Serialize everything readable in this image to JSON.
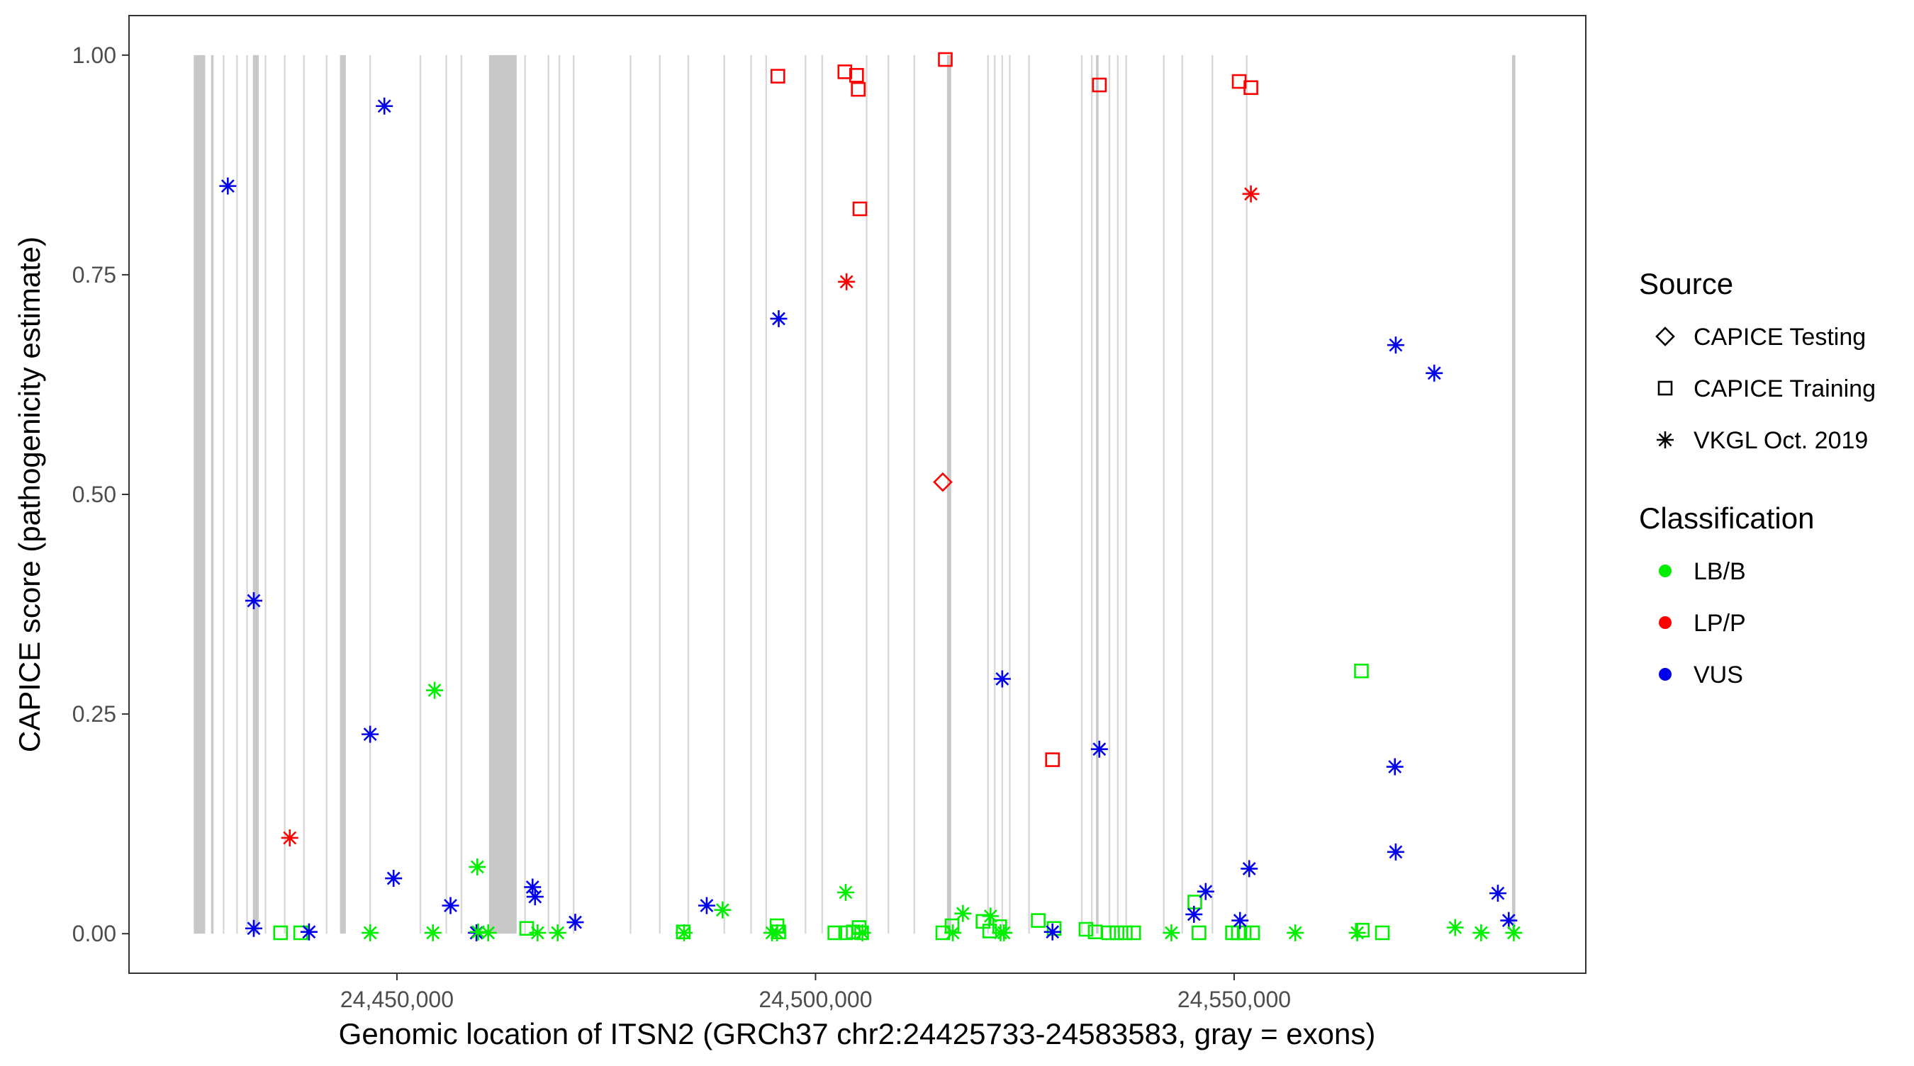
{
  "chart_data": {
    "type": "scatter",
    "xlabel": "Genomic location of ITSN2 (GRCh37 chr2:24425733-24583583, gray = exons)",
    "ylabel": "CAPICE score (pathogenicity estimate)",
    "xlim": [
      24418000,
      24592000
    ],
    "ylim": [
      -0.045,
      1.045
    ],
    "x_ticks": [
      24450000,
      24500000,
      24550000
    ],
    "x_tick_labels": [
      "24,450,000",
      "24,500,000",
      "24,550,000"
    ],
    "y_ticks": [
      0,
      0.25,
      0.5,
      0.75,
      1.0
    ],
    "y_tick_labels": [
      "0.00",
      "0.25",
      "0.50",
      "0.75",
      "1.00"
    ],
    "grid": false,
    "legend_position": "right",
    "legends": [
      {
        "title": "Source",
        "entries": [
          {
            "label": "CAPICE Testing",
            "shape": "diamond"
          },
          {
            "label": "CAPICE Training",
            "shape": "square"
          },
          {
            "label": "VKGL Oct. 2019",
            "shape": "asterisk"
          }
        ]
      },
      {
        "title": "Classification",
        "entries": [
          {
            "label": "LB/B",
            "color": "#00ee00"
          },
          {
            "label": "LP/P",
            "color": "#ff0000"
          },
          {
            "label": "VUS",
            "color": "#0000ee"
          }
        ]
      }
    ],
    "colors": {
      "LB/B": "#00ee00",
      "LP/P": "#ff0000",
      "VUS": "#0000ee",
      "exon": "#c8c8c8",
      "background": "#ffffff"
    },
    "exons": [
      [
        24425733,
        24427100
      ],
      [
        24427800,
        24428100
      ],
      [
        24429200,
        24429400
      ],
      [
        24430800,
        24431000
      ],
      [
        24432000,
        24432200
      ],
      [
        24432800,
        24433500
      ],
      [
        24434200,
        24434400
      ],
      [
        24436500,
        24436700
      ],
      [
        24438800,
        24439000
      ],
      [
        24441500,
        24441700
      ],
      [
        24443200,
        24443900
      ],
      [
        24446700,
        24446900
      ],
      [
        24452700,
        24452900
      ],
      [
        24455800,
        24456000
      ],
      [
        24457600,
        24457800
      ],
      [
        24461000,
        24464300
      ],
      [
        24465200,
        24465400
      ],
      [
        24468000,
        24468200
      ],
      [
        24469300,
        24469500
      ],
      [
        24471000,
        24471200
      ],
      [
        24477800,
        24478000
      ],
      [
        24481300,
        24481500
      ],
      [
        24484700,
        24484900
      ],
      [
        24489000,
        24489200
      ],
      [
        24492200,
        24492400
      ],
      [
        24494000,
        24494200
      ],
      [
        24498700,
        24498900
      ],
      [
        24500700,
        24500900
      ],
      [
        24506000,
        24506200
      ],
      [
        24508600,
        24508800
      ],
      [
        24511700,
        24511900
      ],
      [
        24515700,
        24516200
      ],
      [
        24520500,
        24520700
      ],
      [
        24521300,
        24521500
      ],
      [
        24522200,
        24522400
      ],
      [
        24523100,
        24523300
      ],
      [
        24525400,
        24525600
      ],
      [
        24531700,
        24531900
      ],
      [
        24532900,
        24533100
      ],
      [
        24533500,
        24533800
      ],
      [
        24535000,
        24535200
      ],
      [
        24536000,
        24536200
      ],
      [
        24537000,
        24537200
      ],
      [
        24541500,
        24541700
      ],
      [
        24543700,
        24543900
      ],
      [
        24547300,
        24547500
      ],
      [
        24551400,
        24551600
      ],
      [
        24583200,
        24583583
      ]
    ],
    "series": [
      {
        "name": "CAPICE Testing / LP/P",
        "shape": "diamond",
        "classification": "LP/P",
        "points": [
          [
            24515200,
            0.514
          ]
        ]
      },
      {
        "name": "CAPICE Training / LP/P",
        "shape": "square",
        "classification": "LP/P",
        "points": [
          [
            24495500,
            0.976
          ],
          [
            24503500,
            0.981
          ],
          [
            24504900,
            0.977
          ],
          [
            24505100,
            0.961
          ],
          [
            24505300,
            0.825
          ],
          [
            24515500,
            0.995
          ],
          [
            24528300,
            0.198
          ],
          [
            24533900,
            0.966
          ],
          [
            24550600,
            0.97
          ],
          [
            24552000,
            0.963
          ]
        ]
      },
      {
        "name": "CAPICE Training / LB/B",
        "shape": "square",
        "classification": "LB/B",
        "points": [
          [
            24436100,
            0.001
          ],
          [
            24438500,
            0.001
          ],
          [
            24465500,
            0.006
          ],
          [
            24484200,
            0.002
          ],
          [
            24495400,
            0.009
          ],
          [
            24495600,
            0.002
          ],
          [
            24502300,
            0.001
          ],
          [
            24503600,
            0.001
          ],
          [
            24504500,
            0.002
          ],
          [
            24505200,
            0.007
          ],
          [
            24505500,
            0.001
          ],
          [
            24515200,
            0.001
          ],
          [
            24516300,
            0.009
          ],
          [
            24520000,
            0.014
          ],
          [
            24520800,
            0.003
          ],
          [
            24522000,
            0.008
          ],
          [
            24526600,
            0.015
          ],
          [
            24528500,
            0.006
          ],
          [
            24532300,
            0.005
          ],
          [
            24533400,
            0.002
          ],
          [
            24535000,
            0.001
          ],
          [
            24536000,
            0.001
          ],
          [
            24537000,
            0.001
          ],
          [
            24538000,
            0.001
          ],
          [
            24545300,
            0.036
          ],
          [
            24545800,
            0.001
          ],
          [
            24549800,
            0.001
          ],
          [
            24550500,
            0.001
          ],
          [
            24551200,
            0.001
          ],
          [
            24552200,
            0.001
          ],
          [
            24565200,
            0.299
          ],
          [
            24565300,
            0.004
          ],
          [
            24567700,
            0.001
          ]
        ]
      },
      {
        "name": "VKGL Oct. 2019 / VUS",
        "shape": "asterisk",
        "classification": "VUS",
        "points": [
          [
            24429800,
            0.851
          ],
          [
            24432900,
            0.379
          ],
          [
            24432900,
            0.006
          ],
          [
            24439500,
            0.002
          ],
          [
            24446800,
            0.227
          ],
          [
            24448500,
            0.942
          ],
          [
            24449600,
            0.063
          ],
          [
            24456400,
            0.032
          ],
          [
            24459500,
            0.001
          ],
          [
            24466200,
            0.053
          ],
          [
            24466500,
            0.042
          ],
          [
            24471300,
            0.013
          ],
          [
            24487000,
            0.032
          ],
          [
            24495600,
            0.7
          ],
          [
            24522300,
            0.29
          ],
          [
            24528300,
            0.002
          ],
          [
            24533900,
            0.21
          ],
          [
            24545200,
            0.022
          ],
          [
            24546600,
            0.048
          ],
          [
            24550700,
            0.015
          ],
          [
            24551800,
            0.074
          ],
          [
            24569300,
            0.67
          ],
          [
            24569200,
            0.19
          ],
          [
            24569300,
            0.093
          ],
          [
            24573900,
            0.638
          ],
          [
            24581500,
            0.046
          ],
          [
            24582800,
            0.015
          ]
        ]
      },
      {
        "name": "VKGL Oct. 2019 / LP/P",
        "shape": "asterisk",
        "classification": "LP/P",
        "points": [
          [
            24437200,
            0.109
          ],
          [
            24503700,
            0.742
          ],
          [
            24552000,
            0.842
          ]
        ]
      },
      {
        "name": "VKGL Oct. 2019 / LB/B",
        "shape": "asterisk",
        "classification": "LB/B",
        "points": [
          [
            24446800,
            0.001
          ],
          [
            24454500,
            0.277
          ],
          [
            24454300,
            0.001
          ],
          [
            24459600,
            0.076
          ],
          [
            24459700,
            0.002
          ],
          [
            24460900,
            0.001
          ],
          [
            24466800,
            0.001
          ],
          [
            24469200,
            0.001
          ],
          [
            24484300,
            0.001
          ],
          [
            24488900,
            0.027
          ],
          [
            24494800,
            0.001
          ],
          [
            24495400,
            0.001
          ],
          [
            24503600,
            0.047
          ],
          [
            24505600,
            0.001
          ],
          [
            24516400,
            0.001
          ],
          [
            24517600,
            0.023
          ],
          [
            24520900,
            0.02
          ],
          [
            24522500,
            0.001
          ],
          [
            24522100,
            0.001
          ],
          [
            24542500,
            0.001
          ],
          [
            24557300,
            0.001
          ],
          [
            24564700,
            0.001
          ],
          [
            24576400,
            0.007
          ],
          [
            24579500,
            0.001
          ],
          [
            24583400,
            0.001
          ]
        ]
      }
    ]
  }
}
